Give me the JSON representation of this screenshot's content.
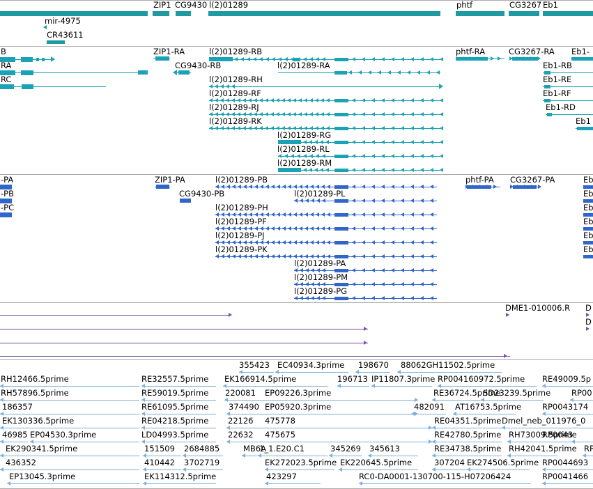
{
  "colors": {
    "gene": "#1e9aa0",
    "transcript_a": "#1aa3b7",
    "transcript_b": "#2f66cc",
    "est_line": "#6b4a9e",
    "est_arrow": "#7a4fb0",
    "cdna": "#7aaed8",
    "cdna_arrow": "#7ab0dc",
    "divider": "#aaaaaa"
  },
  "tracks": {
    "genes": {
      "labels": [
        {
          "id": "zip1",
          "text": "ZIP1"
        },
        {
          "id": "cg9430",
          "text": "CG9430"
        },
        {
          "id": "l201289",
          "text": "l(2)01289"
        },
        {
          "id": "phtf",
          "text": "phtf"
        },
        {
          "id": "cg3267",
          "text": "CG3267"
        },
        {
          "id": "eb1",
          "text": "Eb1"
        },
        {
          "id": "mir4975",
          "text": "mir-4975"
        },
        {
          "id": "cr43611",
          "text": "CR43611"
        }
      ]
    },
    "transcripts_r": {
      "labels": [
        {
          "id": "b",
          "text": "B"
        },
        {
          "id": "ra",
          "text": "RA"
        },
        {
          "id": "rc",
          "text": "RC"
        },
        {
          "id": "zip1ra",
          "text": "ZIP1-RA"
        },
        {
          "id": "cg9430rb",
          "text": "CG9430-RB"
        },
        {
          "id": "l2rb",
          "text": "l(2)01289-RB"
        },
        {
          "id": "l2ra",
          "text": "l(2)01289-RA"
        },
        {
          "id": "l2rh",
          "text": "l(2)01289-RH"
        },
        {
          "id": "l2rf",
          "text": "l(2)01289-RF"
        },
        {
          "id": "l2rj",
          "text": "l(2)01289-RJ"
        },
        {
          "id": "l2rk",
          "text": "l(2)01289-RK"
        },
        {
          "id": "l2rg",
          "text": "l(2)01289-RG"
        },
        {
          "id": "l2rl",
          "text": "l(2)01289-RL"
        },
        {
          "id": "l2rm",
          "text": "l(2)01289-RM"
        },
        {
          "id": "phtfra",
          "text": "phtf-RA"
        },
        {
          "id": "cg3267ra",
          "text": "CG3267-RA"
        },
        {
          "id": "eb1",
          "text": "Eb1-"
        },
        {
          "id": "eb1rb",
          "text": "Eb1-RB"
        },
        {
          "id": "eb1re",
          "text": "Eb1-RE"
        },
        {
          "id": "eb1rf",
          "text": "Eb1-RF"
        },
        {
          "id": "eb1rd",
          "text": "Eb1-RD"
        },
        {
          "id": "eb1x",
          "text": "Eb1"
        }
      ]
    },
    "transcripts_p": {
      "labels": [
        {
          "id": "pa",
          "text": "-PA"
        },
        {
          "id": "pb",
          "text": "-PB"
        },
        {
          "id": "pc",
          "text": "-PC"
        },
        {
          "id": "zip1pa",
          "text": "ZIP1-PA"
        },
        {
          "id": "cg9430pb",
          "text": "CG9430-PB"
        },
        {
          "id": "l2pb",
          "text": "l(2)01289-PB"
        },
        {
          "id": "l2pl",
          "text": "l(2)01289-PL"
        },
        {
          "id": "l2ph",
          "text": "l(2)01289-PH"
        },
        {
          "id": "l2pf",
          "text": "l(2)01289-PF"
        },
        {
          "id": "l2pj",
          "text": "l(2)01289-PJ"
        },
        {
          "id": "l2pk",
          "text": "l(2)01289-PK"
        },
        {
          "id": "l2pa",
          "text": "l(2)01289-PA"
        },
        {
          "id": "l2pm",
          "text": "l(2)01289-PM"
        },
        {
          "id": "l2pg",
          "text": "l(2)01289-PG"
        },
        {
          "id": "phtfpa",
          "text": "phtf-PA"
        },
        {
          "id": "cg3267pa",
          "text": "CG3267-PA"
        },
        {
          "id": "eb1a",
          "text": "Eb"
        },
        {
          "id": "eb1b",
          "text": "Eb"
        },
        {
          "id": "eb1c",
          "text": "Eb"
        },
        {
          "id": "eb1d",
          "text": "Eb"
        },
        {
          "id": "eb1e",
          "text": "Eb"
        },
        {
          "id": "eb1f",
          "text": "Eb"
        }
      ]
    },
    "ests": {
      "labels": [
        {
          "id": "dme1",
          "text": "DME1-010006.R"
        },
        {
          "id": "d1",
          "text": "D"
        },
        {
          "id": "d2",
          "text": "D"
        }
      ]
    },
    "cdnas": {
      "labels": [
        {
          "id": "c1",
          "text": "355423"
        },
        {
          "id": "c2",
          "text": "EC40934.3prime"
        },
        {
          "id": "c3",
          "text": "198670"
        },
        {
          "id": "c4",
          "text": "88062GH11502.5prime"
        },
        {
          "id": "c5",
          "text": "RH12466.5prime"
        },
        {
          "id": "c6",
          "text": "RE32557.5prime"
        },
        {
          "id": "c7",
          "text": "EK166914.5prime"
        },
        {
          "id": "c8",
          "text": "196713"
        },
        {
          "id": "c9",
          "text": "IP11807.3prime"
        },
        {
          "id": "c10",
          "text": "RP004160972.5prime"
        },
        {
          "id": "c11",
          "text": "RE49009.5p"
        },
        {
          "id": "c12",
          "text": "RH57896.5prime"
        },
        {
          "id": "c13",
          "text": "RE59019.5prime"
        },
        {
          "id": "c14",
          "text": "220081"
        },
        {
          "id": "c15",
          "text": "EP09226.3prime"
        },
        {
          "id": "c16",
          "text": "RE36724.5prime"
        },
        {
          "id": "c17",
          "text": "SD23239.5prime"
        },
        {
          "id": "c18",
          "text": "RP00"
        },
        {
          "id": "c19",
          "text": "186357"
        },
        {
          "id": "c20",
          "text": "RE61095.5prime"
        },
        {
          "id": "c21",
          "text": "374490"
        },
        {
          "id": "c22",
          "text": "EP05920.3prime"
        },
        {
          "id": "c23",
          "text": "482091"
        },
        {
          "id": "c24",
          "text": "AT16753.5prime"
        },
        {
          "id": "c25",
          "text": "RP0043174"
        },
        {
          "id": "c26",
          "text": "EK130336.5prime"
        },
        {
          "id": "c27",
          "text": "RE04218.5prime"
        },
        {
          "id": "c28",
          "text": "22126"
        },
        {
          "id": "c29",
          "text": "475778"
        },
        {
          "id": "c30",
          "text": "RE04351.5prime"
        },
        {
          "id": "c31",
          "text": "Dmel_neb_011976_0"
        },
        {
          "id": "c32",
          "text": "46985"
        },
        {
          "id": "c33",
          "text": "EP04530.3prime"
        },
        {
          "id": "c34",
          "text": "LD04993.5prime"
        },
        {
          "id": "c35",
          "text": "22632"
        },
        {
          "id": "c36",
          "text": "475675"
        },
        {
          "id": "c37",
          "text": "RE42780.5prime"
        },
        {
          "id": "c38",
          "text": "RH73009.5prime"
        },
        {
          "id": "c39",
          "text": "RP0043"
        },
        {
          "id": "c40",
          "text": "EK290341.5prime"
        },
        {
          "id": "c41",
          "text": "151509"
        },
        {
          "id": "c42",
          "text": "2684885"
        },
        {
          "id": "c43",
          "text": "MB6A"
        },
        {
          "id": "c44",
          "text": "1_1.E20.C1"
        },
        {
          "id": "c45",
          "text": "345269"
        },
        {
          "id": "c46",
          "text": "345613"
        },
        {
          "id": "c47",
          "text": "RE34738.5prime"
        },
        {
          "id": "c48",
          "text": "RH42041.5prime"
        },
        {
          "id": "c49",
          "text": "RP"
        },
        {
          "id": "c50",
          "text": "436352"
        },
        {
          "id": "c51",
          "text": "410442"
        },
        {
          "id": "c52",
          "text": "3702719"
        },
        {
          "id": "c53",
          "text": "EK272023.5prime"
        },
        {
          "id": "c54",
          "text": "EK220645.5prime"
        },
        {
          "id": "c55",
          "text": "307204"
        },
        {
          "id": "c56",
          "text": "EK274506.5prime"
        },
        {
          "id": "c57",
          "text": "RP0044693"
        },
        {
          "id": "c58",
          "text": "EP13045.3prime"
        },
        {
          "id": "c59",
          "text": "EK114312.5prime"
        },
        {
          "id": "c60",
          "text": "423297"
        },
        {
          "id": "c61",
          "text": "RC0-DA0001-130700-115-H07206424"
        },
        {
          "id": "c62",
          "text": "RP0041466"
        }
      ]
    }
  }
}
